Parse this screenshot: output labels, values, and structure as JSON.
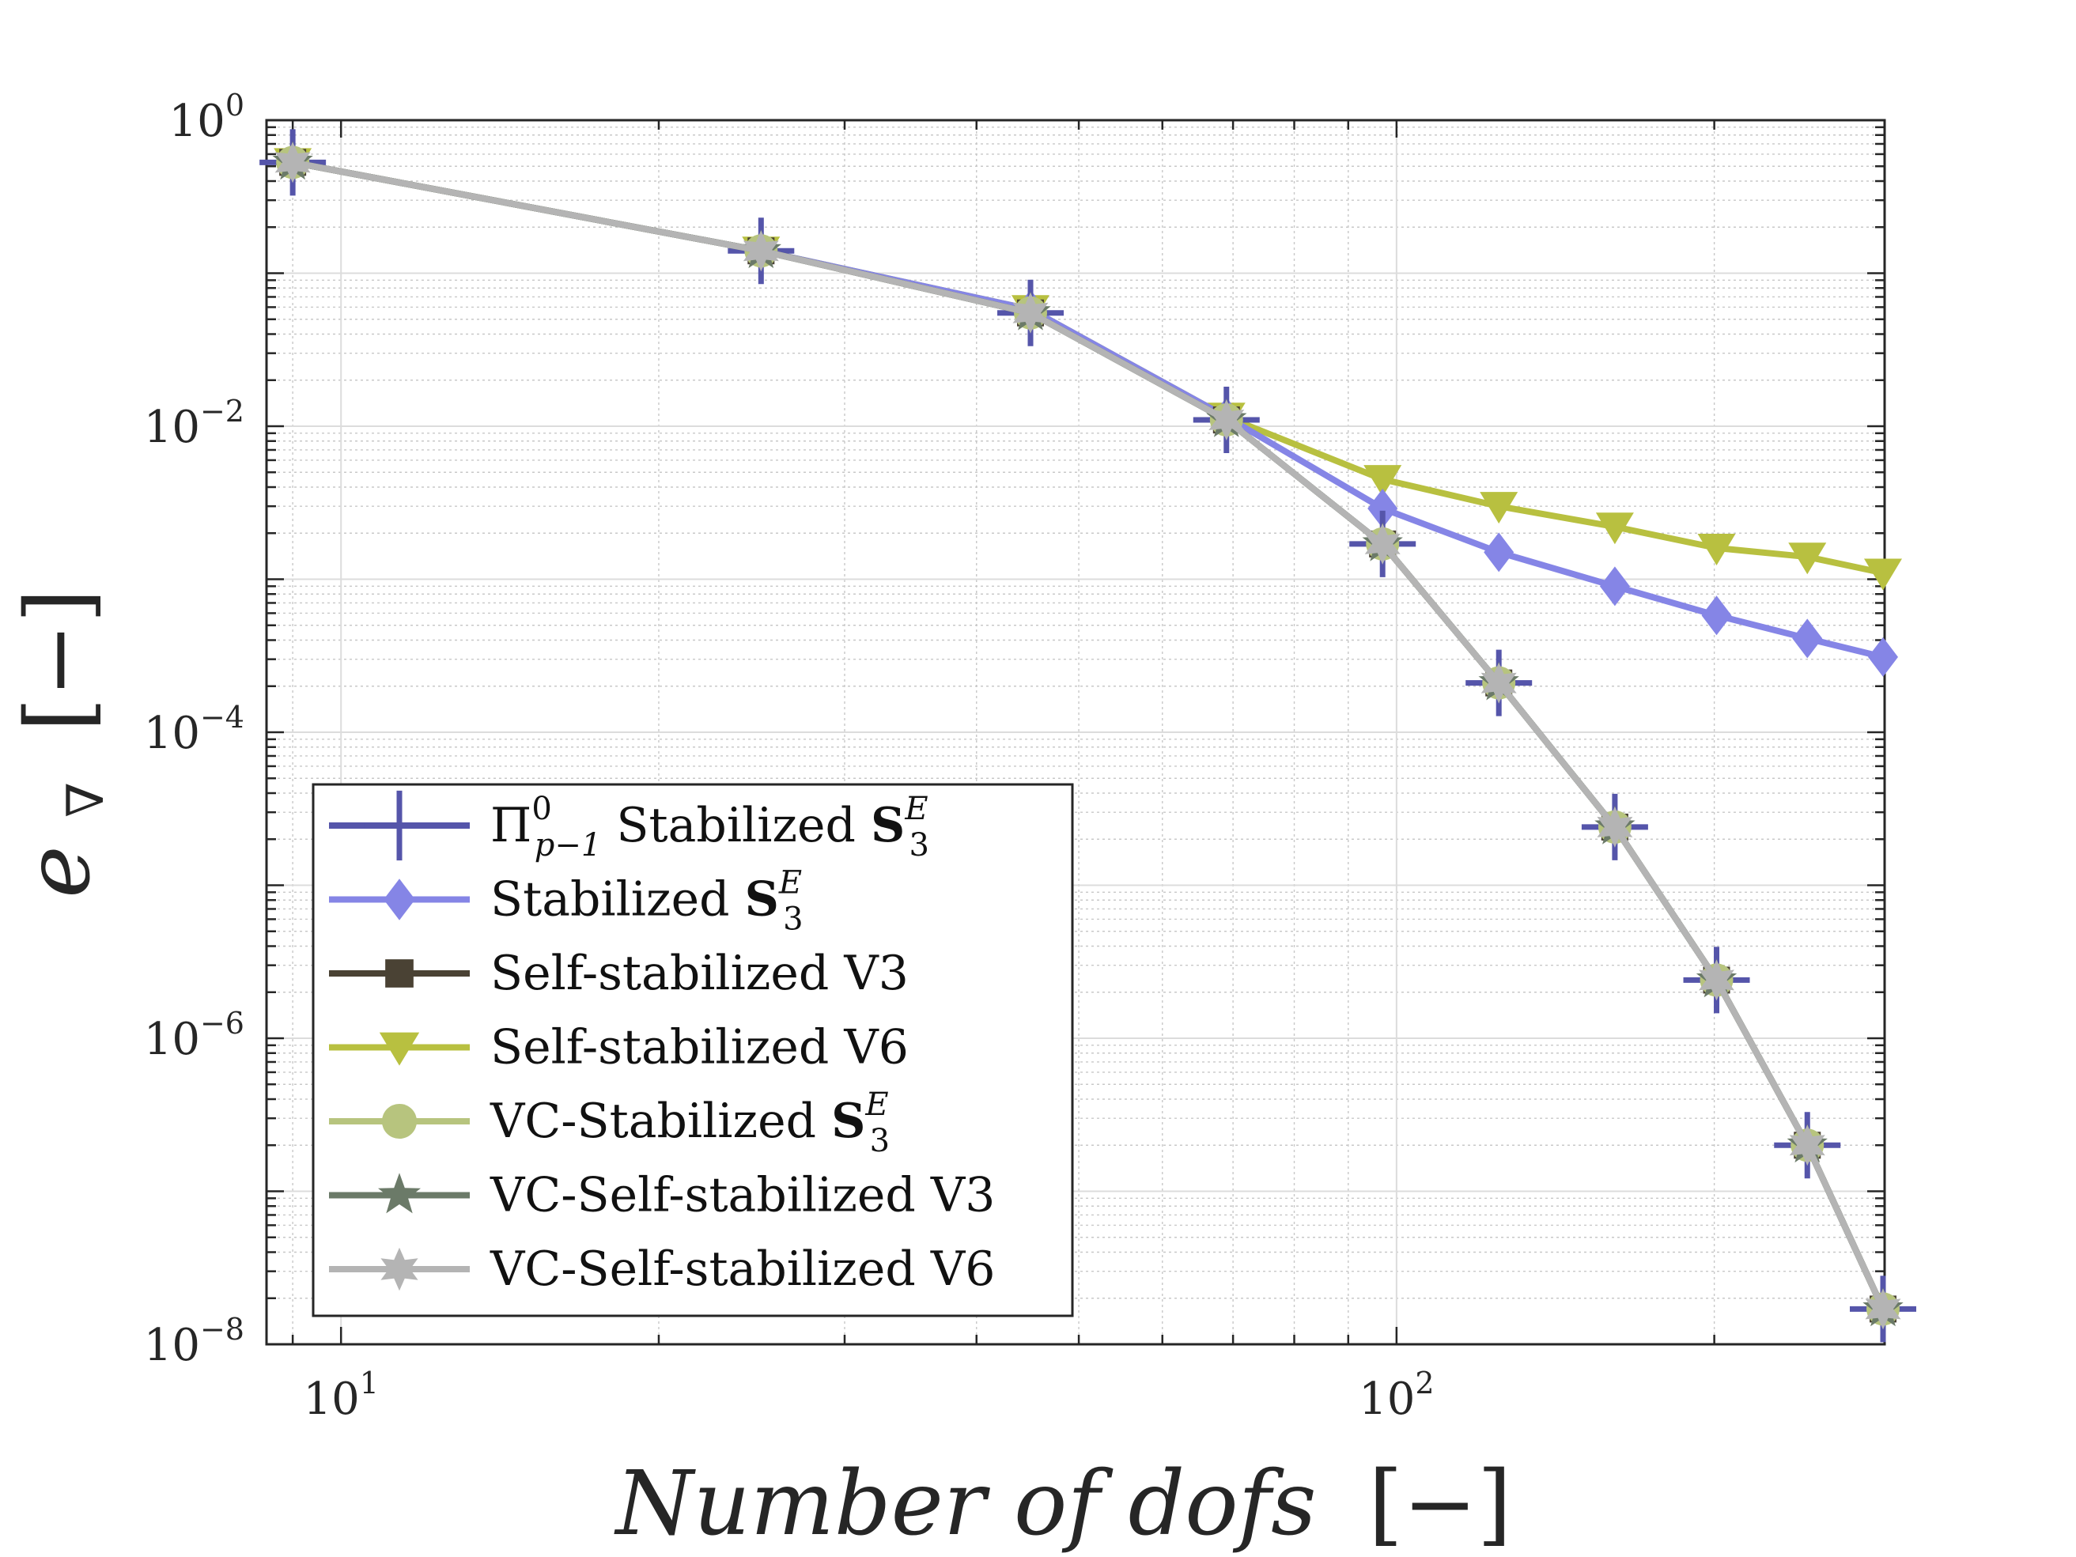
{
  "chart_data": {
    "type": "line",
    "xscale": "log",
    "yscale": "log",
    "xlim": [
      8.5,
      290
    ],
    "ylim": [
      1e-08,
      1
    ],
    "grid": true,
    "title": "",
    "xlabel": "Number of dofs",
    "xlabel_unit": "[−]",
    "ylabel_symbol": "e",
    "ylabel_subscript": "∇",
    "ylabel_unit": "[−]",
    "xticks": [
      {
        "value": 10,
        "base": "10",
        "exp": "1"
      },
      {
        "value": 100,
        "base": "10",
        "exp": "2"
      }
    ],
    "yticks": [
      {
        "value": 1,
        "base": "10",
        "exp": "0"
      },
      {
        "value": 0.01,
        "base": "10",
        "exp": "−2"
      },
      {
        "value": 0.0001,
        "base": "10",
        "exp": "−4"
      },
      {
        "value": 1e-06,
        "base": "10",
        "exp": "−6"
      },
      {
        "value": 1e-08,
        "base": "10",
        "exp": "−8"
      }
    ],
    "x": [
      9,
      25,
      45,
      69,
      97,
      125,
      161,
      201,
      245,
      289
    ],
    "series": [
      {
        "name": "Π⁰ₚ₋₁ Stabilized S₃ᴱ",
        "legend_main": "Π",
        "legend_sup": "0",
        "legend_sub": "p−1",
        "legend_rest": " Stabilized ",
        "legend_bold": "S",
        "legend_bold_sub": "3",
        "legend_bold_sup": "E",
        "marker": "plus",
        "color": "#5555aa",
        "values": [
          0.53,
          0.14,
          0.055,
          0.011,
          0.0017,
          0.00021,
          2.4e-05,
          2.4e-06,
          2e-07,
          1.7e-08
        ]
      },
      {
        "name": "Stabilized S₃ᴱ",
        "legend_main": "Stabilized ",
        "legend_bold": "S",
        "legend_bold_sub": "3",
        "legend_bold_sup": "E",
        "marker": "diamond",
        "color": "#8585e6",
        "values": [
          0.53,
          0.14,
          0.058,
          0.0115,
          0.0029,
          0.0015,
          0.0009,
          0.00058,
          0.00041,
          0.00031
        ]
      },
      {
        "name": "Self-stabilized V3",
        "legend_main": "Self-stabilized V3",
        "marker": "square",
        "color": "#4a4234",
        "values": [
          0.53,
          0.14,
          0.055,
          0.011,
          0.0017,
          0.00021,
          2.4e-05,
          2.4e-06,
          2e-07,
          1.7e-08
        ]
      },
      {
        "name": "Self-stabilized V6",
        "legend_main": "Self-stabilized V6",
        "marker": "triangle-down",
        "color": "#b8c040",
        "values": [
          0.53,
          0.14,
          0.058,
          0.0115,
          0.0045,
          0.003,
          0.0022,
          0.0016,
          0.0014,
          0.0011
        ]
      },
      {
        "name": "VC-Stabilized S₃ᴱ",
        "legend_main": "VC-Stabilized ",
        "legend_bold": "S",
        "legend_bold_sub": "3",
        "legend_bold_sup": "E",
        "marker": "circle",
        "color": "#b7c47e",
        "values": [
          0.53,
          0.14,
          0.055,
          0.011,
          0.0017,
          0.00021,
          2.4e-05,
          2.4e-06,
          2e-07,
          1.7e-08
        ]
      },
      {
        "name": "VC-Self-stabilized V3",
        "legend_main": "VC-Self-stabilized V3",
        "marker": "star5",
        "color": "#6b7a68",
        "values": [
          0.53,
          0.14,
          0.055,
          0.011,
          0.0017,
          0.00021,
          2.4e-05,
          2.4e-06,
          2e-07,
          1.7e-08
        ]
      },
      {
        "name": "VC-Self-stabilized V6",
        "legend_main": "VC-Self-stabilized V6",
        "marker": "star6",
        "color": "#b4b4b4",
        "values": [
          0.53,
          0.14,
          0.055,
          0.011,
          0.0017,
          0.00021,
          2.4e-05,
          2.4e-06,
          2e-07,
          1.7e-08
        ]
      }
    ],
    "legend_location": "bottom-left"
  }
}
